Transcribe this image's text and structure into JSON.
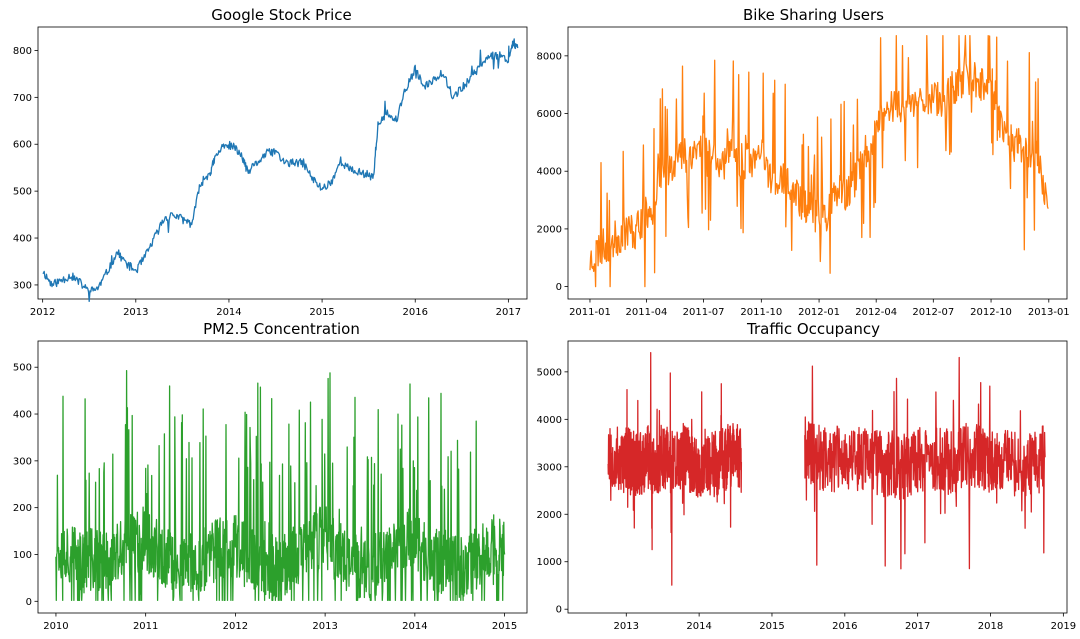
{
  "chart_data": [
    {
      "type": "line",
      "title": "Google Stock Price",
      "xlabel": "",
      "ylabel": "",
      "x_type": "year",
      "xlim": [
        2011.95,
        2017.2
      ],
      "ylim": [
        270,
        850
      ],
      "xticks": [
        2012,
        2013,
        2014,
        2015,
        2016,
        2017
      ],
      "xtick_labels": [
        "2012",
        "2013",
        "2014",
        "2015",
        "2016",
        "2017"
      ],
      "yticks": [
        300,
        400,
        500,
        600,
        700,
        800
      ],
      "ytick_labels": [
        "300",
        "400",
        "500",
        "600",
        "700",
        "800"
      ],
      "color": "#1f77b4",
      "grid": false,
      "series": [
        {
          "x": [
            2012.0,
            2012.1,
            2012.2,
            2012.3,
            2012.4,
            2012.5,
            2012.6,
            2012.7,
            2012.8,
            2012.9,
            2013.0,
            2013.1,
            2013.2,
            2013.3,
            2013.4,
            2013.5,
            2013.6,
            2013.7,
            2013.8,
            2013.85,
            2013.95,
            2014.05,
            2014.15,
            2014.2,
            2014.3,
            2014.4,
            2014.5,
            2014.6,
            2014.7,
            2014.8,
            2014.9,
            2015.0,
            2015.1,
            2015.2,
            2015.3,
            2015.4,
            2015.5,
            2015.55,
            2015.6,
            2015.7,
            2015.8,
            2015.9,
            2016.0,
            2016.1,
            2016.2,
            2016.3,
            2016.4,
            2016.5,
            2016.6,
            2016.7,
            2016.8,
            2016.9,
            2017.0,
            2017.05,
            2017.1
          ],
          "y": [
            330,
            300,
            310,
            320,
            305,
            285,
            295,
            330,
            370,
            345,
            330,
            360,
            400,
            440,
            450,
            440,
            430,
            520,
            540,
            570,
            600,
            595,
            570,
            540,
            560,
            580,
            585,
            560,
            560,
            560,
            525,
            505,
            520,
            565,
            545,
            540,
            535,
            530,
            640,
            665,
            650,
            720,
            760,
            720,
            740,
            755,
            700,
            720,
            740,
            770,
            790,
            790,
            780,
            820,
            805
          ]
        }
      ]
    },
    {
      "type": "line",
      "title": "Bike Sharing Users",
      "xlabel": "",
      "ylabel": "",
      "x_type": "date",
      "xlim": [
        "2010-11-27",
        "2013-01-30"
      ],
      "ylim": [
        -430,
        9000
      ],
      "xticks": [
        "2011-01-01",
        "2011-04-01",
        "2011-07-01",
        "2011-10-01",
        "2012-01-01",
        "2012-04-01",
        "2012-07-01",
        "2012-10-01",
        "2013-01-01"
      ],
      "xtick_labels": [
        "2011-01",
        "2011-04",
        "2011-07",
        "2011-10",
        "2012-01",
        "2012-04",
        "2012-07",
        "2012-10",
        "2013-01"
      ],
      "yticks": [
        0,
        2000,
        4000,
        6000,
        8000
      ],
      "ytick_labels": [
        "0",
        "2000",
        "4000",
        "6000",
        "8000"
      ],
      "color": "#ff7f0e",
      "grid": false,
      "series": [
        {
          "x": [
            "2011-01-01",
            "2011-01-15",
            "2011-02-01",
            "2011-02-15",
            "2011-03-01",
            "2011-03-15",
            "2011-04-01",
            "2011-04-15",
            "2011-05-01",
            "2011-05-15",
            "2011-06-01",
            "2011-06-15",
            "2011-07-01",
            "2011-07-15",
            "2011-08-01",
            "2011-08-15",
            "2011-09-01",
            "2011-09-15",
            "2011-10-01",
            "2011-10-15",
            "2011-11-01",
            "2011-11-15",
            "2011-12-01",
            "2011-12-15",
            "2012-01-01",
            "2012-01-15",
            "2012-02-01",
            "2012-02-15",
            "2012-03-01",
            "2012-03-15",
            "2012-04-01",
            "2012-04-15",
            "2012-05-01",
            "2012-05-15",
            "2012-06-01",
            "2012-06-15",
            "2012-07-01",
            "2012-07-15",
            "2012-08-01",
            "2012-08-15",
            "2012-09-01",
            "2012-09-15",
            "2012-10-01",
            "2012-10-15",
            "2012-11-01",
            "2012-11-15",
            "2012-12-01",
            "2012-12-15",
            "2012-12-31"
          ],
          "y": [
            900,
            1300,
            1500,
            1700,
            2000,
            1900,
            2500,
            3200,
            4000,
            4400,
            4600,
            4700,
            4900,
            4700,
            4300,
            4500,
            4400,
            4300,
            4600,
            3900,
            3700,
            3400,
            3000,
            2800,
            2400,
            2600,
            3300,
            3100,
            3800,
            4600,
            5300,
            6000,
            6400,
            6200,
            6400,
            6500,
            6700,
            6300,
            6900,
            7000,
            7300,
            7100,
            7200,
            5800,
            5000,
            4900,
            4600,
            4500,
            2700
          ]
        }
      ]
    },
    {
      "type": "line",
      "title": "PM2.5 Concentration",
      "xlabel": "",
      "ylabel": "",
      "x_type": "year",
      "xlim": [
        2009.8,
        2015.25
      ],
      "ylim": [
        -25,
        556
      ],
      "xticks": [
        2010,
        2011,
        2012,
        2013,
        2014,
        2015
      ],
      "xtick_labels": [
        "2010",
        "2011",
        "2012",
        "2013",
        "2014",
        "2015"
      ],
      "yticks": [
        0,
        100,
        200,
        300,
        400,
        500
      ],
      "ytick_labels": [
        "0",
        "100",
        "200",
        "300",
        "400",
        "500"
      ],
      "color": "#2ca02c",
      "grid": false,
      "series": [
        {
          "x": [
            2010.0,
            2010.1,
            2010.2,
            2010.3,
            2010.4,
            2010.5,
            2010.6,
            2010.7,
            2010.8,
            2010.9,
            2011.0,
            2011.1,
            2011.2,
            2011.3,
            2011.4,
            2011.5,
            2011.6,
            2011.7,
            2011.8,
            2011.9,
            2012.0,
            2012.1,
            2012.2,
            2012.3,
            2012.4,
            2012.5,
            2012.6,
            2012.7,
            2012.8,
            2012.9,
            2013.0,
            2013.1,
            2013.2,
            2013.3,
            2013.4,
            2013.5,
            2013.6,
            2013.7,
            2013.8,
            2013.9,
            2014.0,
            2014.1,
            2014.2,
            2014.3,
            2014.4,
            2014.5,
            2014.6,
            2014.7,
            2014.8,
            2014.9,
            2015.0
          ],
          "y": [
            130,
            110,
            95,
            85,
            90,
            80,
            85,
            100,
            120,
            130,
            135,
            110,
            90,
            80,
            70,
            75,
            80,
            95,
            110,
            120,
            120,
            100,
            85,
            80,
            75,
            80,
            85,
            100,
            110,
            125,
            140,
            115,
            95,
            85,
            75,
            75,
            80,
            95,
            115,
            130,
            125,
            105,
            90,
            80,
            70,
            75,
            80,
            90,
            110,
            120,
            100
          ]
        }
      ]
    },
    {
      "type": "line",
      "title": "Traffic Occupancy",
      "xlabel": "",
      "ylabel": "",
      "x_type": "year",
      "xlim": [
        2012.2,
        2019.05
      ],
      "ylim": [
        -80,
        5650
      ],
      "xticks": [
        2013,
        2014,
        2015,
        2016,
        2017,
        2018,
        2019
      ],
      "xtick_labels": [
        "2013",
        "2014",
        "2015",
        "2016",
        "2017",
        "2018",
        "2019"
      ],
      "yticks": [
        0,
        1000,
        2000,
        3000,
        4000,
        5000
      ],
      "ytick_labels": [
        "0",
        "1000",
        "2000",
        "3000",
        "4000",
        "5000"
      ],
      "color": "#d62728",
      "grid": false,
      "series": [
        {
          "x": [
            2012.75,
            2012.9,
            2013.0,
            2013.1,
            2013.2,
            2013.3,
            2013.4,
            2013.5,
            2013.6,
            2013.7,
            2013.8,
            2013.9,
            2014.0,
            2014.1,
            2014.2,
            2014.3,
            2014.4,
            2014.5,
            2014.58
          ],
          "y": [
            3400,
            3100,
            3150,
            3050,
            3100,
            3200,
            3000,
            3250,
            3100,
            3050,
            3300,
            3100,
            2900,
            3150,
            3050,
            3100,
            3200,
            3300,
            3100
          ]
        },
        {
          "x": [
            2015.45,
            2015.6,
            2015.8,
            2016.0,
            2016.2,
            2016.4,
            2016.6,
            2016.8,
            2017.0,
            2017.2,
            2017.4,
            2017.6,
            2017.8,
            2018.0,
            2018.2,
            2018.4,
            2018.6,
            2018.75
          ],
          "y": [
            3300,
            3200,
            3150,
            3200,
            3150,
            3100,
            3050,
            3000,
            3150,
            3200,
            3100,
            3150,
            3200,
            3100,
            3150,
            3050,
            3100,
            3200
          ]
        }
      ]
    }
  ]
}
